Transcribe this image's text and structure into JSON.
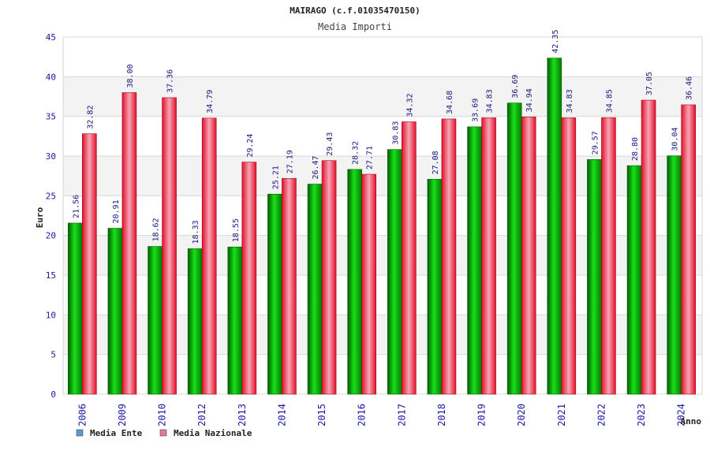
{
  "chart_data": {
    "type": "bar",
    "title": "MAIRAGO (c.f.01035470150)",
    "subtitle": "Media Importi",
    "xlabel": "Anno",
    "ylabel": "Euro",
    "ylim": [
      0,
      45
    ],
    "yticks": [
      0,
      5,
      10,
      15,
      20,
      25,
      30,
      35,
      40,
      45
    ],
    "grid": true,
    "legend_position": "bottom-left",
    "categories": [
      "2006",
      "2009",
      "2010",
      "2012",
      "2013",
      "2014",
      "2015",
      "2016",
      "2017",
      "2018",
      "2019",
      "2020",
      "2021",
      "2022",
      "2023",
      "2024"
    ],
    "series": [
      {
        "name": "Media Ente",
        "values": [
          21.56,
          20.91,
          18.62,
          18.33,
          18.55,
          25.21,
          26.47,
          28.32,
          30.83,
          27.08,
          33.69,
          36.69,
          42.35,
          29.57,
          28.8,
          30.04
        ],
        "labels": [
          "21.56",
          "20.91",
          "18.62",
          "18.33",
          "18.55",
          "25.21",
          "26.47",
          "28.32",
          "30.83",
          "27.08",
          "33.69",
          "36.69",
          "42.35",
          "29.57",
          "28.80",
          "30.04"
        ]
      },
      {
        "name": "Media Nazionale",
        "values": [
          32.82,
          38.0,
          37.36,
          34.79,
          29.24,
          27.19,
          29.43,
          27.71,
          34.32,
          34.68,
          34.83,
          34.94,
          34.83,
          34.85,
          37.05,
          36.46
        ],
        "labels": [
          "32.82",
          "38.00",
          "37.36",
          "34.79",
          "29.24",
          "27.19",
          "29.43",
          "27.71",
          "34.32",
          "34.68",
          "34.83",
          "34.94",
          "34.83",
          "34.85",
          "37.05",
          "36.46"
        ]
      }
    ],
    "legend_colors": [
      "#5b9bd5",
      "#e377a8"
    ]
  }
}
